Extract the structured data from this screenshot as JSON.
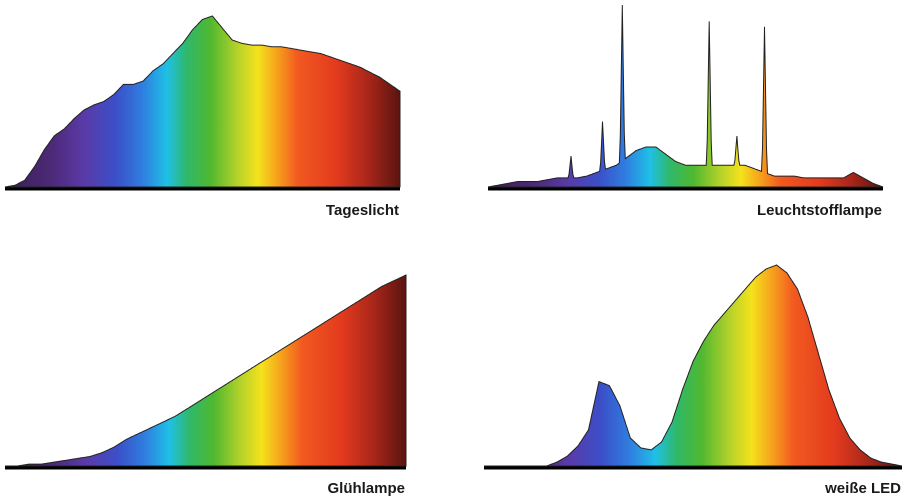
{
  "panels": [
    {
      "id": "tageslicht",
      "label": "Tageslicht",
      "profile": [
        0.0,
        0.01,
        0.04,
        0.12,
        0.22,
        0.3,
        0.34,
        0.4,
        0.45,
        0.48,
        0.5,
        0.54,
        0.6,
        0.6,
        0.62,
        0.68,
        0.72,
        0.78,
        0.84,
        0.92,
        0.98,
        1.0,
        0.93,
        0.86,
        0.84,
        0.83,
        0.83,
        0.82,
        0.82,
        0.81,
        0.8,
        0.79,
        0.78,
        0.76,
        0.74,
        0.72,
        0.7,
        0.67,
        0.64,
        0.6,
        0.56
      ],
      "peaks": []
    },
    {
      "id": "leuchtstofflampe",
      "label": "Leuchtstofflampe",
      "profile": [
        0.0,
        0.01,
        0.02,
        0.03,
        0.03,
        0.03,
        0.04,
        0.05,
        0.05,
        0.05,
        0.06,
        0.08,
        0.1,
        0.12,
        0.16,
        0.2,
        0.22,
        0.22,
        0.18,
        0.14,
        0.12,
        0.12,
        0.12,
        0.12,
        0.12,
        0.12,
        0.12,
        0.1,
        0.08,
        0.06,
        0.06,
        0.06,
        0.05,
        0.05,
        0.05,
        0.05,
        0.05,
        0.08,
        0.05,
        0.02,
        0.0
      ],
      "peaks": [
        {
          "x": 0.21,
          "h": 0.17
        },
        {
          "x": 0.29,
          "h": 0.36
        },
        {
          "x": 0.34,
          "h": 1.0
        },
        {
          "x": 0.56,
          "h": 0.91
        },
        {
          "x": 0.63,
          "h": 0.28
        },
        {
          "x": 0.7,
          "h": 0.88
        }
      ]
    },
    {
      "id": "gluehlampe",
      "label": "Glühlampe",
      "profile": [
        0.0,
        0.0,
        0.01,
        0.01,
        0.02,
        0.03,
        0.04,
        0.05,
        0.07,
        0.1,
        0.14,
        0.17,
        0.2,
        0.23,
        0.26,
        0.3,
        0.34,
        0.38,
        0.42,
        0.46,
        0.5,
        0.54,
        0.58,
        0.62,
        0.66,
        0.7,
        0.74,
        0.78,
        0.82,
        0.86,
        0.9,
        0.94,
        0.97,
        1.0
      ],
      "peaks": []
    },
    {
      "id": "weisse-led",
      "label": "weiße LED",
      "profile": [
        0.0,
        0.0,
        0.0,
        0.0,
        0.0,
        0.0,
        0.0,
        0.02,
        0.05,
        0.1,
        0.18,
        0.42,
        0.4,
        0.3,
        0.14,
        0.09,
        0.08,
        0.12,
        0.22,
        0.38,
        0.52,
        0.62,
        0.7,
        0.76,
        0.82,
        0.88,
        0.94,
        0.98,
        1.0,
        0.96,
        0.88,
        0.74,
        0.56,
        0.38,
        0.24,
        0.14,
        0.08,
        0.04,
        0.02,
        0.01,
        0.0
      ],
      "peaks": []
    }
  ]
}
